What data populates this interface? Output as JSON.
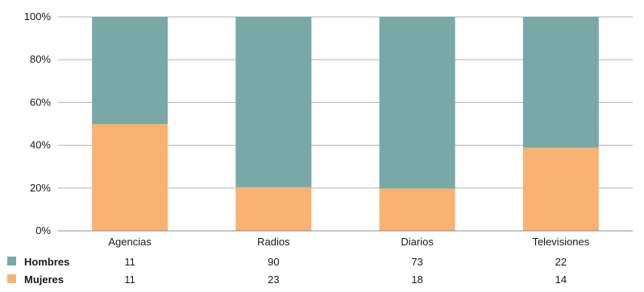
{
  "chart_data": {
    "type": "bar",
    "stacked": true,
    "normalized": true,
    "categories": [
      "Agencias",
      "Radios",
      "Diarios",
      "Televisiones"
    ],
    "series": [
      {
        "name": "Hombres",
        "values": [
          11,
          90,
          73,
          22
        ],
        "color": "#78a9a7"
      },
      {
        "name": "Mujeres",
        "values": [
          11,
          23,
          18,
          14
        ],
        "color": "#f9b272"
      }
    ],
    "yticks": [
      "0%",
      "20%",
      "40%",
      "60%",
      "80%",
      "100%"
    ],
    "ylim": [
      0,
      100
    ],
    "grid": true,
    "legend": "bottom table"
  }
}
